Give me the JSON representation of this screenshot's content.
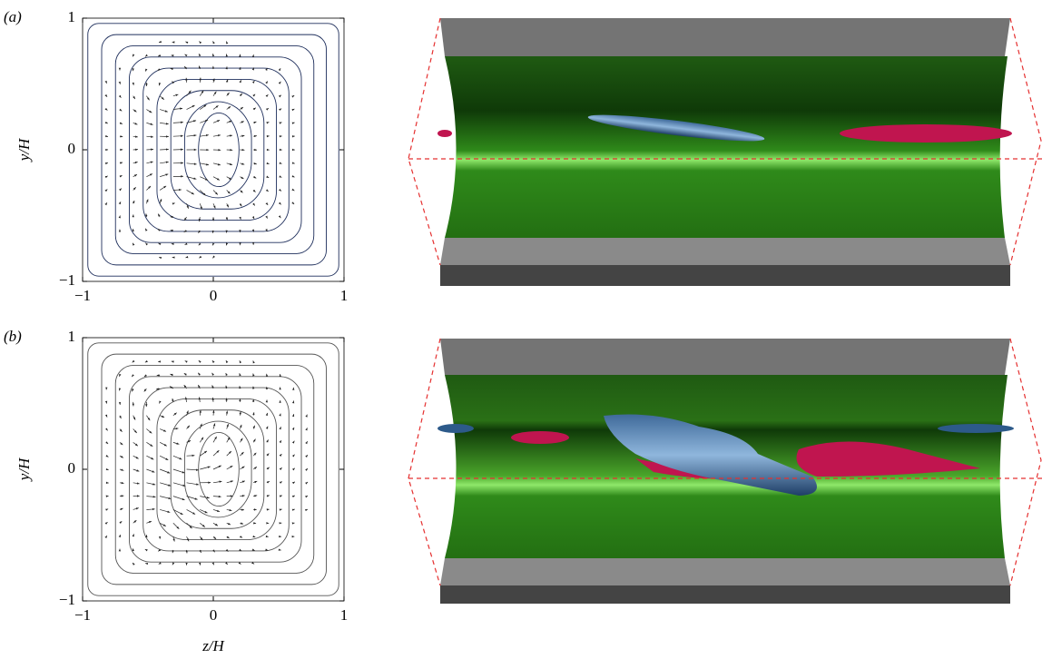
{
  "chart_data": [
    {
      "type": "quiver",
      "panel_label": "(a)",
      "ylabel": "y/H",
      "xlim": [
        -1,
        1
      ],
      "ylim": [
        -1,
        1
      ],
      "xticks": [
        {
          "value": -1,
          "label": "−1"
        },
        0,
        1
      ],
      "yticks": [
        {
          "value": -1,
          "label": "−1"
        },
        0,
        1
      ],
      "line_color": "#1f2f5c"
    },
    {
      "type": "quiver",
      "panel_label": "(b)",
      "ylabel": "y/H",
      "xlabel": "z/H",
      "xlim": [
        -1,
        1
      ],
      "ylim": [
        -1,
        1
      ],
      "xticks": [
        {
          "value": -1,
          "label": "−1"
        },
        0,
        1
      ],
      "yticks": [
        {
          "value": -1,
          "label": "−1"
        },
        0,
        1
      ],
      "line_color": "#555555"
    }
  ]
}
